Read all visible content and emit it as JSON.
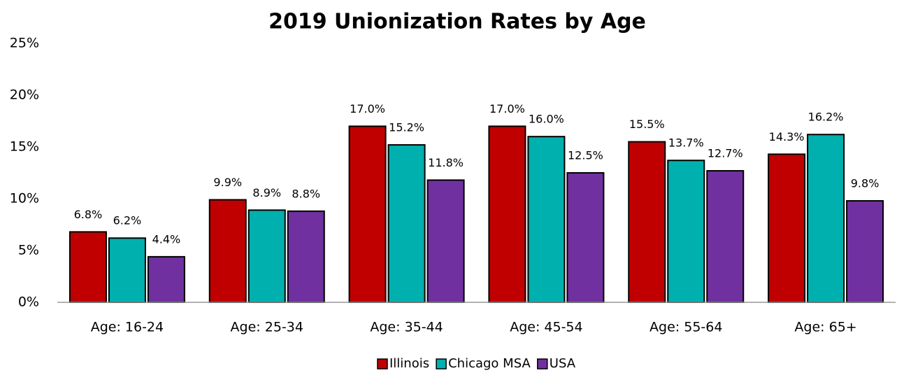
{
  "chart_data": {
    "type": "bar",
    "title": "2019 Unionization Rates by Age",
    "categories": [
      "Age: 16-24",
      "Age: 25-34",
      "Age: 35-44",
      "Age: 45-54",
      "Age: 55-64",
      "Age: 65+"
    ],
    "series": [
      {
        "name": "Illinois",
        "color": "#c00000",
        "values": [
          6.8,
          9.9,
          17.0,
          17.0,
          15.5,
          14.3
        ],
        "value_labels": [
          "6.8%",
          "9.9%",
          "17.0%",
          "17.0%",
          "15.5%",
          "14.3%"
        ]
      },
      {
        "name": "Chicago MSA",
        "color": "#00b0ae",
        "values": [
          6.2,
          8.9,
          15.2,
          16.0,
          13.7,
          16.2
        ],
        "value_labels": [
          "6.2%",
          "8.9%",
          "15.2%",
          "16.0%",
          "13.7%",
          "16.2%"
        ]
      },
      {
        "name": "USA",
        "color": "#7030a0",
        "values": [
          4.4,
          8.8,
          11.8,
          12.5,
          12.7,
          9.8
        ],
        "value_labels": [
          "4.4%",
          "8.8%",
          "11.8%",
          "12.5%",
          "12.7%",
          "9.8%"
        ]
      }
    ],
    "ylim": [
      0,
      25
    ],
    "yticks": [
      {
        "value": 0,
        "label": "0%"
      },
      {
        "value": 5,
        "label": "5%"
      },
      {
        "value": 10,
        "label": "10%"
      },
      {
        "value": 15,
        "label": "15%"
      },
      {
        "value": 20,
        "label": "20%"
      },
      {
        "value": 25,
        "label": "25%"
      }
    ],
    "grid": false,
    "legend": "bottom"
  }
}
